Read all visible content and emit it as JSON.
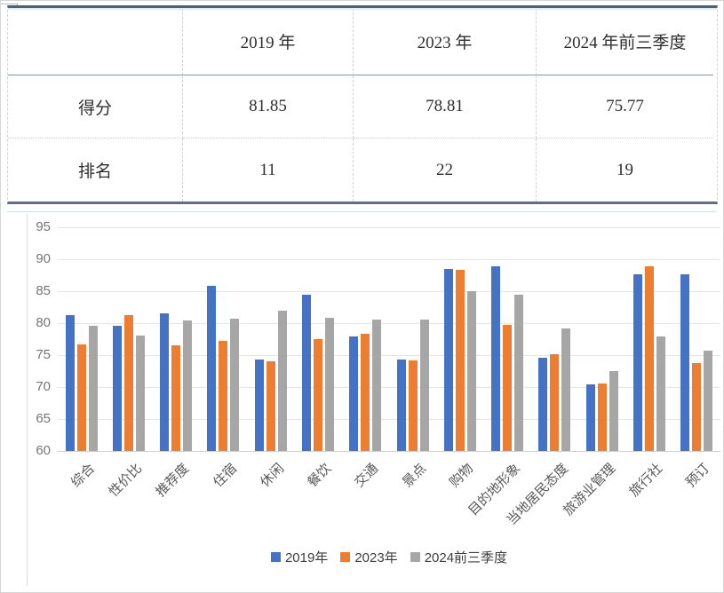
{
  "table": {
    "columns": [
      "",
      "2019 年",
      "2023 年",
      "2024 年前三季度"
    ],
    "rows": [
      {
        "label": "得分",
        "values": [
          "81.85",
          "78.81",
          "75.77"
        ]
      },
      {
        "label": "排名",
        "values": [
          "11",
          "22",
          "19"
        ]
      }
    ]
  },
  "chart_data": {
    "type": "bar",
    "title": "",
    "xlabel": "",
    "ylabel": "",
    "categories": [
      "综合",
      "性价比",
      "推荐度",
      "住宿",
      "休闲",
      "餐饮",
      "交通",
      "景点",
      "购物",
      "目的地形象",
      "当地居民态度",
      "旅游业管理",
      "旅行社",
      "预订"
    ],
    "series": [
      {
        "name": "2019年",
        "color": "#4472C4",
        "values": [
          81.3,
          79.6,
          81.5,
          85.8,
          74.3,
          84.4,
          77.9,
          74.3,
          88.5,
          88.9,
          74.6,
          70.4,
          87.7,
          87.6
        ]
      },
      {
        "name": "2023年",
        "color": "#ED7D31",
        "values": [
          76.6,
          81.3,
          76.5,
          77.2,
          74.0,
          77.5,
          78.3,
          74.2,
          88.3,
          79.7,
          75.2,
          70.6,
          88.9,
          73.7
        ]
      },
      {
        "name": "2024前三季度",
        "color": "#A6A6A6",
        "values": [
          79.6,
          78.1,
          80.4,
          80.7,
          81.9,
          80.8,
          80.6,
          80.6,
          85.0,
          84.4,
          79.1,
          72.5,
          77.9,
          75.7
        ]
      }
    ],
    "ylim": [
      60,
      95
    ],
    "yticks": [
      60,
      65,
      70,
      75,
      80,
      85,
      90,
      95
    ],
    "grid": true,
    "legend_position": "bottom",
    "colors": {
      "gridline": "#e5e5e5",
      "axis_text": "#757575",
      "category_text": "#595959"
    }
  }
}
